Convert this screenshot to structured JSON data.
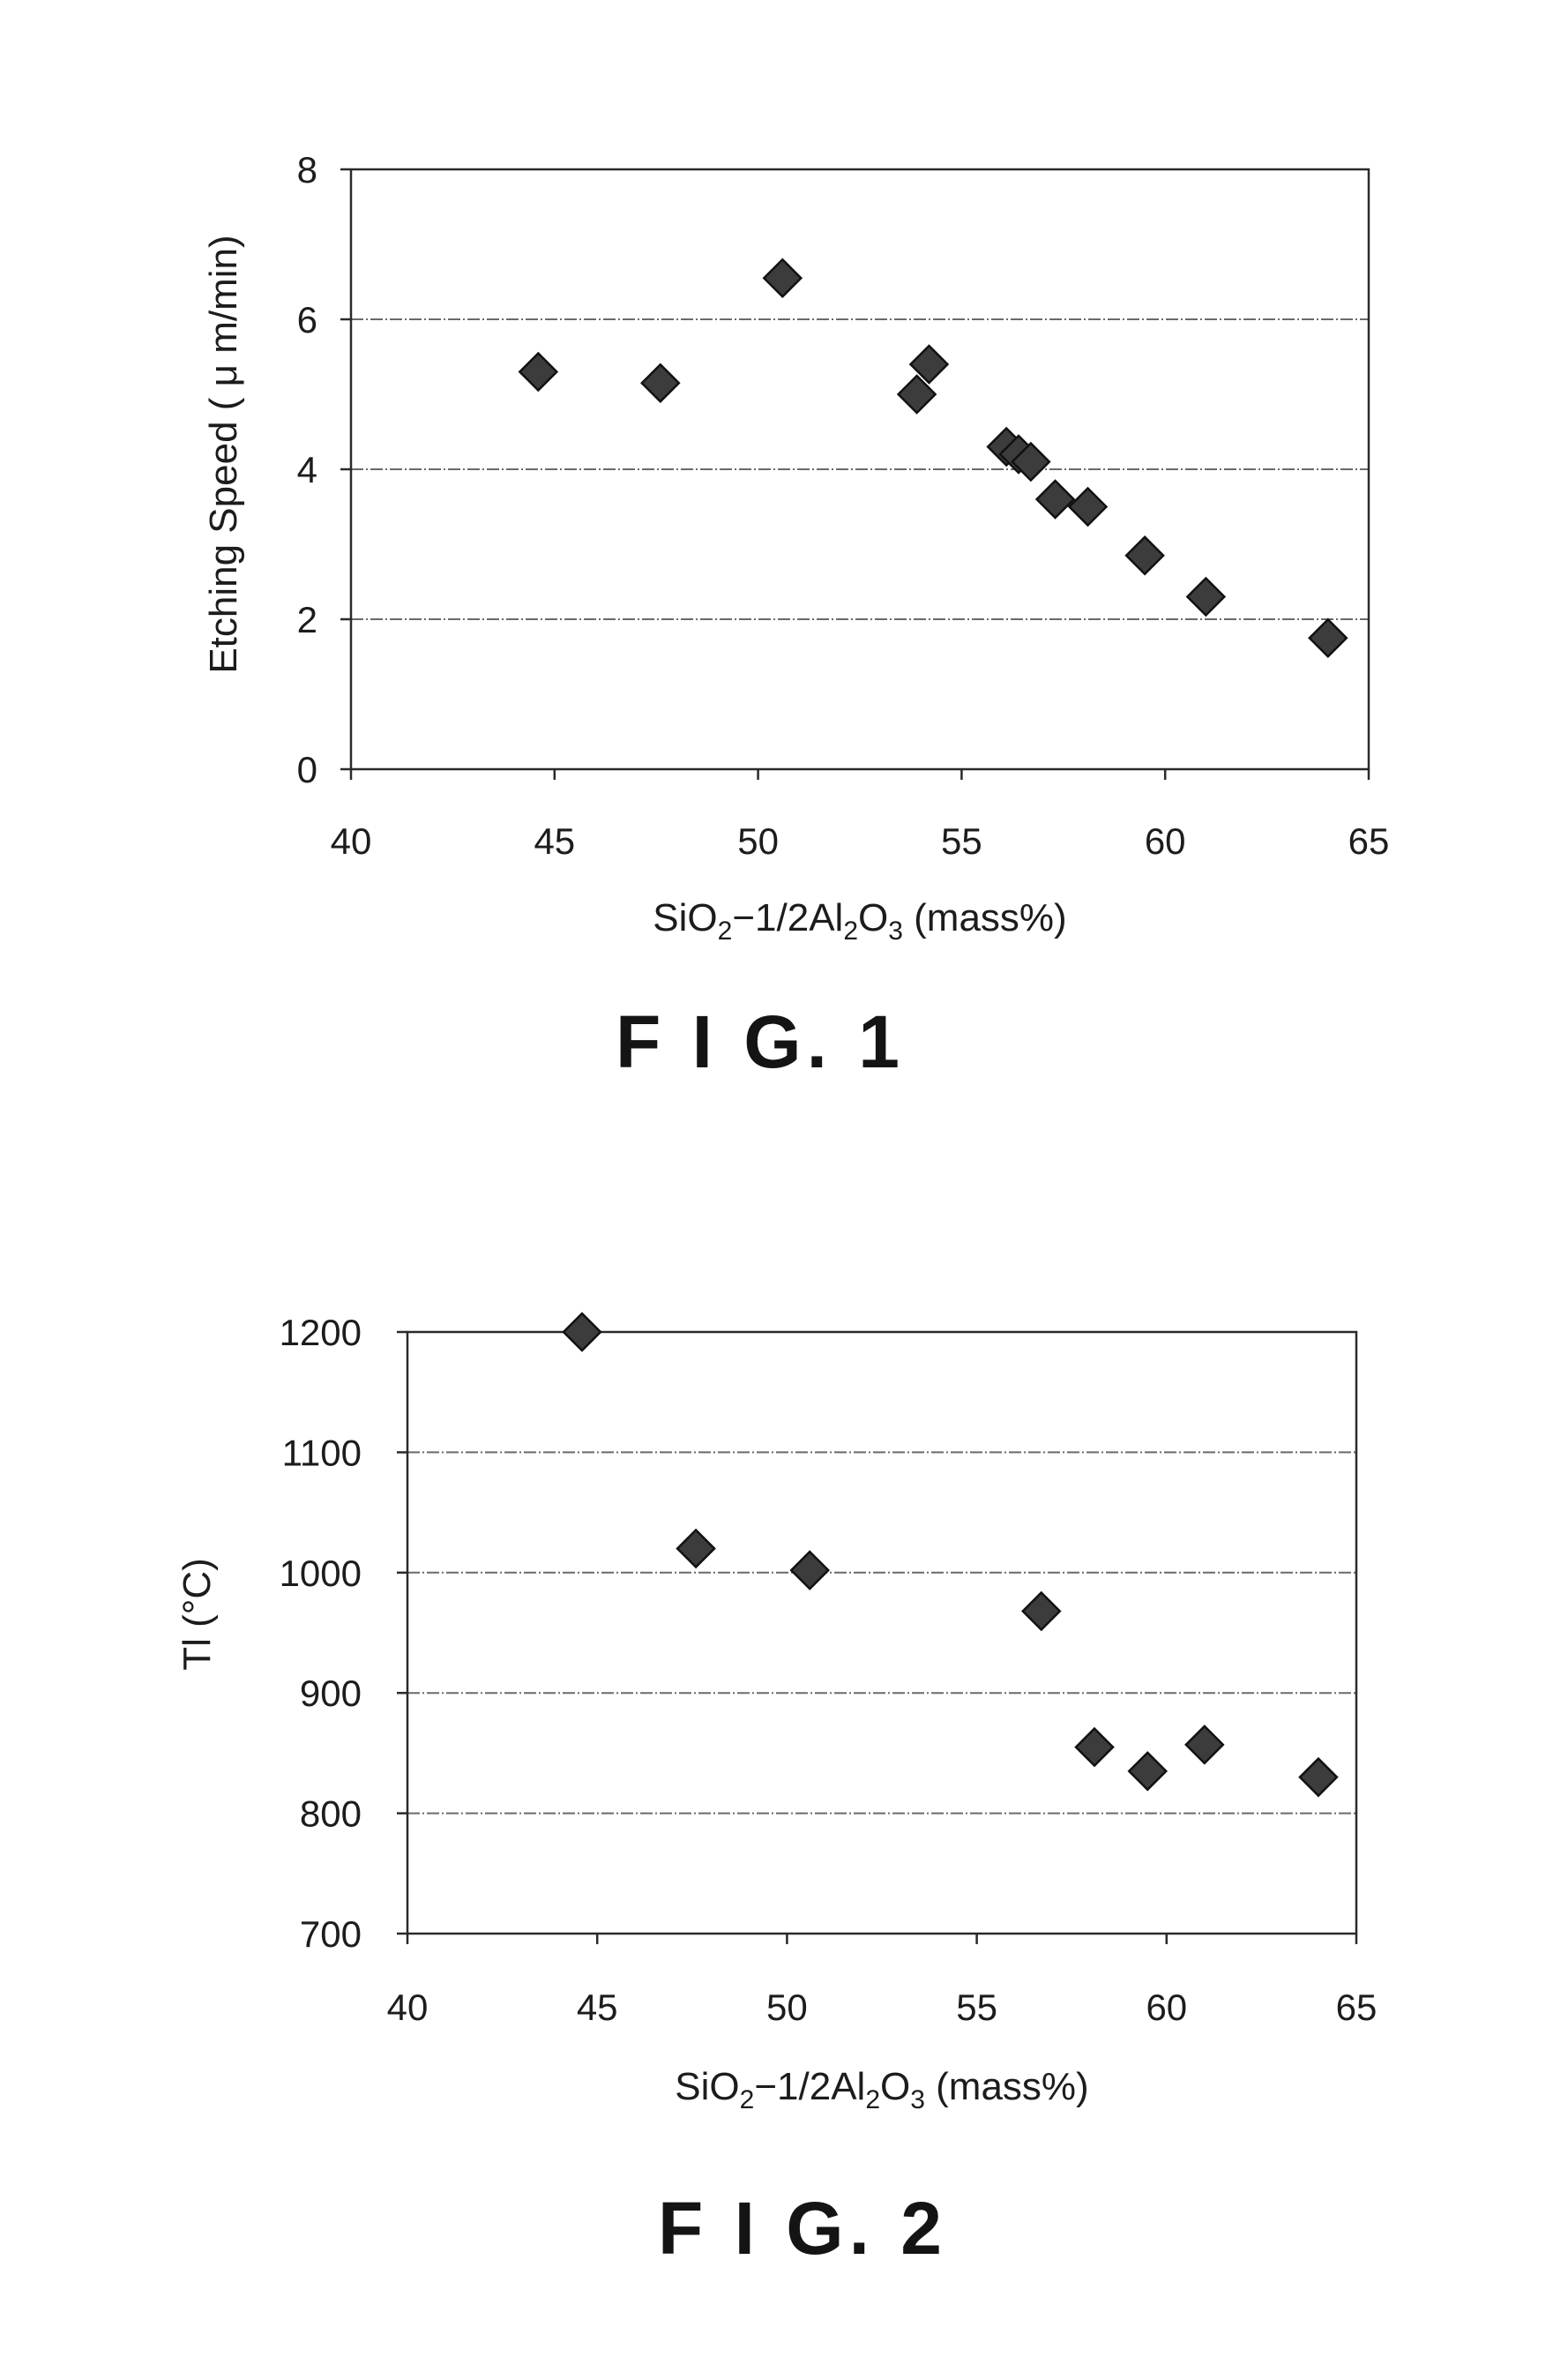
{
  "chart_data": [
    {
      "type": "scatter",
      "caption": "F I G. 1",
      "xlabel": {
        "pre": "SiO",
        "s1": "2",
        "mid": "−1/2Al",
        "s2": "2",
        "mid2": "O",
        "s3": "3",
        "post": " (mass%)"
      },
      "ylabel": "Etching Speed ( μ m/min)",
      "xlim": [
        40,
        65
      ],
      "ylim": [
        0,
        8
      ],
      "xticks": [
        40,
        45,
        50,
        55,
        60,
        65
      ],
      "yticks": [
        0,
        2,
        4,
        6,
        8
      ],
      "grid": "horizontal",
      "points": [
        {
          "x": 44.6,
          "y": 5.3
        },
        {
          "x": 47.6,
          "y": 5.15
        },
        {
          "x": 50.6,
          "y": 6.55
        },
        {
          "x": 53.9,
          "y": 5.0
        },
        {
          "x": 54.2,
          "y": 5.4
        },
        {
          "x": 56.1,
          "y": 4.3
        },
        {
          "x": 56.4,
          "y": 4.2
        },
        {
          "x": 56.7,
          "y": 4.1
        },
        {
          "x": 57.3,
          "y": 3.6
        },
        {
          "x": 58.1,
          "y": 3.5
        },
        {
          "x": 59.5,
          "y": 2.85
        },
        {
          "x": 61.0,
          "y": 2.3
        },
        {
          "x": 64.0,
          "y": 1.75
        }
      ]
    },
    {
      "type": "scatter",
      "caption": "F I G. 2",
      "xlabel": {
        "pre": "SiO",
        "s1": "2",
        "mid": "−1/2Al",
        "s2": "2",
        "mid2": "O",
        "s3": "3",
        "post": " (mass%)"
      },
      "ylabel": "Tl (°C)",
      "xlim": [
        40,
        65
      ],
      "ylim": [
        700,
        1200
      ],
      "xticks": [
        40,
        45,
        50,
        55,
        60,
        65
      ],
      "yticks": [
        700,
        800,
        900,
        1000,
        1100,
        1200
      ],
      "grid": "horizontal",
      "points": [
        {
          "x": 44.6,
          "y": 1200
        },
        {
          "x": 47.6,
          "y": 1020
        },
        {
          "x": 50.6,
          "y": 1002
        },
        {
          "x": 56.7,
          "y": 968
        },
        {
          "x": 58.1,
          "y": 855
        },
        {
          "x": 59.5,
          "y": 835
        },
        {
          "x": 61.0,
          "y": 857
        },
        {
          "x": 64.0,
          "y": 830
        }
      ]
    }
  ]
}
